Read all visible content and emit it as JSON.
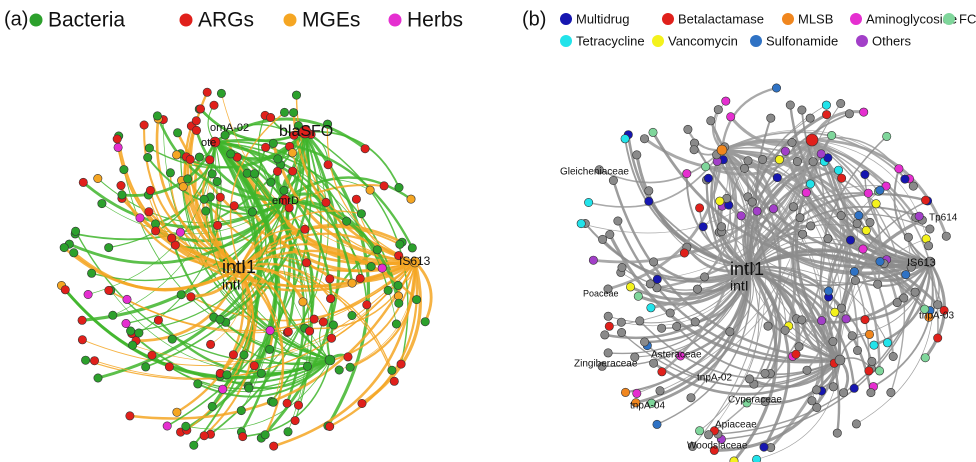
{
  "panels": [
    {
      "label": "(a)",
      "legend": [
        {
          "name": "Bacteria",
          "color": "#2ca02c"
        },
        {
          "name": "ARGs",
          "color": "#e0201b"
        },
        {
          "name": "MGEs",
          "color": "#f5a623"
        },
        {
          "name": "Herbs",
          "color": "#e52fd0"
        }
      ],
      "node_labels": [
        "intI1",
        "intI",
        "blaSFO",
        "ornA-02",
        "ote",
        "emrD",
        "IS613"
      ]
    },
    {
      "label": "(b)",
      "legend": [
        {
          "name": "Multidrug",
          "color": "#1616b0"
        },
        {
          "name": "Betalactamase",
          "color": "#e0201b"
        },
        {
          "name": "MLSB",
          "color": "#f0861e"
        },
        {
          "name": "Aminoglycoside",
          "color": "#e52fd0"
        },
        {
          "name": "FCA",
          "color": "#7fd69b"
        },
        {
          "name": "Tetracycline",
          "color": "#22e3ea"
        },
        {
          "name": "Vancomycin",
          "color": "#f4f21c"
        },
        {
          "name": "Sulfonamide",
          "color": "#2f72c4"
        },
        {
          "name": "Others",
          "color": "#a23fc8"
        }
      ],
      "node_labels": [
        "intI1",
        "intI",
        "Gleicheniaceae",
        "Poaceae",
        "Zingiberaceae",
        "Asteraceae",
        "tnpA-02",
        "tnpA-04",
        "Cyperaceae",
        "Apiaceae",
        "Woodsiaceae",
        "Tp614",
        "IS613",
        "tnpA-03"
      ]
    }
  ]
}
